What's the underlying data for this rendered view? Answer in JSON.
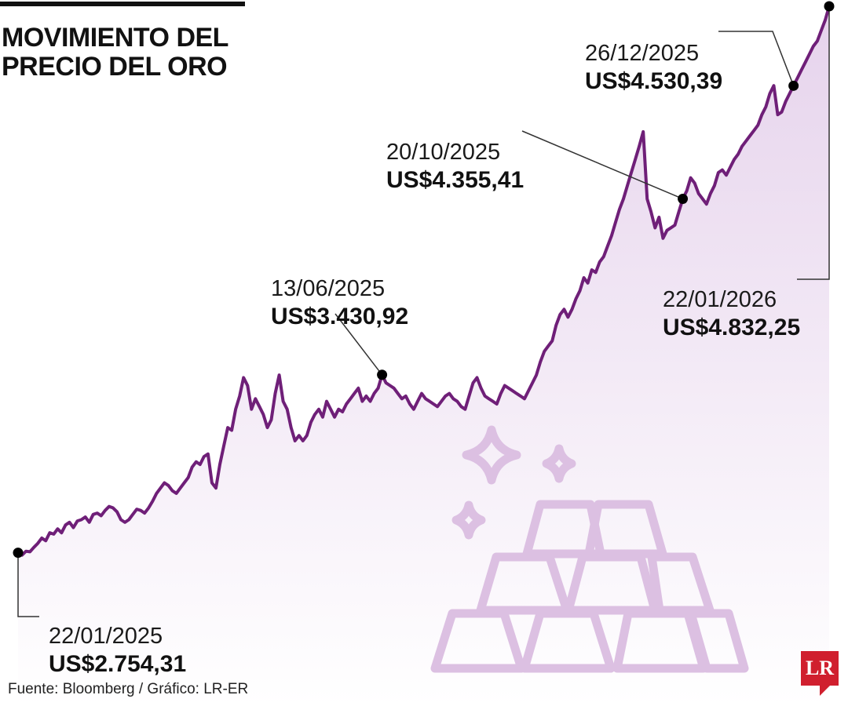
{
  "title": [
    "MOVIMIENTO DEL",
    "PRECIO DEL ORO"
  ],
  "source": "Fuente: Bloomberg / Gráfico: LR-ER",
  "logo": "LR",
  "colors": {
    "line": "#6f1f78",
    "area_top": "#e6d3ec",
    "area_bottom": "#ffffff",
    "illustration": "#dcc0e2",
    "marker": "#000000",
    "logo": "#d01f2e"
  },
  "illustration": "gold-bars-sparkles-icon",
  "chart_data": {
    "type": "area",
    "title": "MOVIMIENTO DEL PRECIO DEL ORO",
    "xlabel": "",
    "ylabel": "",
    "x_range": [
      "2025-01-22",
      "2026-01-22"
    ],
    "ylim": [
      1900,
      4840
    ],
    "grid": false,
    "legend": "none",
    "series": [
      {
        "values": [
          2754.31,
          2745,
          2760,
          2758,
          2775,
          2790,
          2810,
          2800,
          2830,
          2825,
          2845,
          2830,
          2860,
          2870,
          2850,
          2875,
          2880,
          2890,
          2870,
          2900,
          2905,
          2895,
          2915,
          2930,
          2925,
          2910,
          2880,
          2870,
          2880,
          2900,
          2920,
          2915,
          2905,
          2925,
          2950,
          2980,
          3000,
          3020,
          3010,
          2990,
          2980,
          3000,
          3020,
          3040,
          3080,
          3100,
          3090,
          3120,
          3130,
          3020,
          3000,
          3090,
          3160,
          3230,
          3220,
          3300,
          3350,
          3420,
          3390,
          3300,
          3340,
          3310,
          3280,
          3230,
          3260,
          3360,
          3430,
          3330,
          3300,
          3230,
          3180,
          3200,
          3180,
          3200,
          3250,
          3280,
          3300,
          3270,
          3330,
          3300,
          3270,
          3300,
          3290,
          3320,
          3340,
          3360,
          3380,
          3330,
          3350,
          3330,
          3360,
          3380,
          3430.92,
          3400,
          3390,
          3380,
          3360,
          3340,
          3350,
          3320,
          3300,
          3330,
          3360,
          3340,
          3330,
          3320,
          3310,
          3330,
          3350,
          3360,
          3340,
          3330,
          3310,
          3300,
          3350,
          3400,
          3420,
          3380,
          3350,
          3340,
          3330,
          3320,
          3360,
          3390,
          3380,
          3370,
          3360,
          3350,
          3340,
          3370,
          3400,
          3430,
          3480,
          3520,
          3540,
          3560,
          3620,
          3660,
          3680,
          3650,
          3680,
          3720,
          3750,
          3800,
          3780,
          3830,
          3820,
          3860,
          3880,
          3920,
          3960,
          4010,
          4060,
          4100,
          4150,
          4200,
          4250,
          4300,
          4355.41,
          4100,
          4050,
          3990,
          4030,
          3950,
          3980,
          3990,
          4000,
          4050,
          4100,
          4130,
          4180,
          4160,
          4120,
          4100,
          4080,
          4120,
          4150,
          4200,
          4210,
          4190,
          4220,
          4250,
          4270,
          4300,
          4320,
          4340,
          4360,
          4380,
          4420,
          4450,
          4500,
          4530.39,
          4420,
          4430,
          4470,
          4500,
          4530,
          4560,
          4590,
          4620,
          4650,
          4680,
          4700,
          4740,
          4780,
          4832.25
        ]
      }
    ],
    "annotations": [
      {
        "date": "22/01/2025",
        "value": "US$2.754,31"
      },
      {
        "date": "13/06/2025",
        "value": "US$3.430,92"
      },
      {
        "date": "20/10/2025",
        "value": "US$4.355,41"
      },
      {
        "date": "26/12/2025",
        "value": "US$4.530,39"
      },
      {
        "date": "22/01/2026",
        "value": "US$4.832,25"
      }
    ]
  }
}
